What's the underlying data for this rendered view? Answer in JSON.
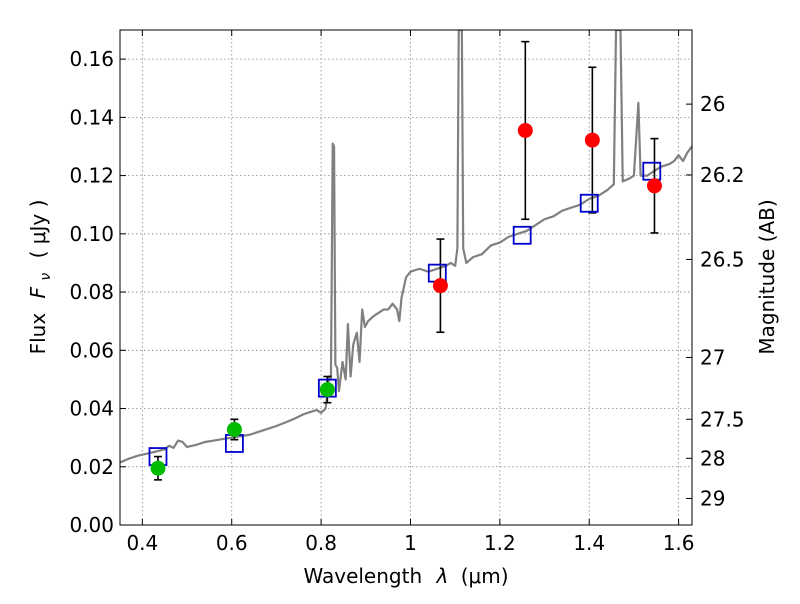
{
  "colors": {
    "spectrum": "#808080",
    "model_box": "#0000cc",
    "optical": "#00bb00",
    "nir": "#ff0000",
    "errorbar": "#000000",
    "grid": "#888888"
  },
  "chart_data": {
    "type": "scatter",
    "xlabel_prefix": "Wavelength",
    "xlabel_var": "λ",
    "xlabel_unit": "(μm)",
    "ylabel_prefix": "Flux",
    "ylabel_var": "F",
    "ylabel_sub": "ν",
    "ylabel_unit": "( μJy )",
    "y2label": "Magnitude (AB)",
    "xlim": [
      0.35,
      1.63
    ],
    "ylim": [
      0.0,
      0.17
    ],
    "grid": true,
    "xticks": [
      0.4,
      0.6,
      0.8,
      1.0,
      1.2,
      1.4,
      1.6
    ],
    "xtick_labels": [
      "0.4",
      "0.6",
      "0.8",
      "1",
      "1.2",
      "1.4",
      "1.6"
    ],
    "yticks": [
      0.0,
      0.02,
      0.04,
      0.06,
      0.08,
      0.1,
      0.12,
      0.14,
      0.16
    ],
    "ytick_labels": [
      "0.00",
      "0.02",
      "0.04",
      "0.06",
      "0.08",
      "0.10",
      "0.12",
      "0.14",
      "0.16"
    ],
    "y2ticks": [
      {
        "mag": 26,
        "label": "26"
      },
      {
        "mag": 26.2,
        "label": "26.2"
      },
      {
        "mag": 26.5,
        "label": "26.5"
      },
      {
        "mag": 27,
        "label": "27"
      },
      {
        "mag": 27.5,
        "label": "27.5"
      },
      {
        "mag": 28,
        "label": "28"
      },
      {
        "mag": 29,
        "label": "29"
      }
    ],
    "model_photometry": [
      {
        "x": 0.435,
        "y": 0.0235
      },
      {
        "x": 0.606,
        "y": 0.028
      },
      {
        "x": 0.814,
        "y": 0.047
      },
      {
        "x": 1.06,
        "y": 0.0865
      },
      {
        "x": 1.25,
        "y": 0.0995
      },
      {
        "x": 1.4,
        "y": 0.1105
      },
      {
        "x": 1.54,
        "y": 0.1215
      }
    ],
    "optical_points": [
      {
        "x": 0.435,
        "y": 0.0195,
        "err": 0.004
      },
      {
        "x": 0.606,
        "y": 0.0328,
        "err": 0.0035
      },
      {
        "x": 0.814,
        "y": 0.0465,
        "err": 0.0045
      }
    ],
    "nir_points": [
      {
        "x": 1.067,
        "y": 0.0822,
        "err": 0.016
      },
      {
        "x": 1.257,
        "y": 0.1355,
        "err": 0.0305
      },
      {
        "x": 1.407,
        "y": 0.1322,
        "err": 0.025
      },
      {
        "x": 1.546,
        "y": 0.1165,
        "err": 0.0162
      }
    ],
    "spectrum": [
      [
        0.35,
        0.0215
      ],
      [
        0.37,
        0.0228
      ],
      [
        0.39,
        0.0238
      ],
      [
        0.41,
        0.0245
      ],
      [
        0.43,
        0.0252
      ],
      [
        0.45,
        0.026
      ],
      [
        0.46,
        0.0272
      ],
      [
        0.47,
        0.0265
      ],
      [
        0.48,
        0.029
      ],
      [
        0.49,
        0.0285
      ],
      [
        0.5,
        0.0268
      ],
      [
        0.52,
        0.0275
      ],
      [
        0.54,
        0.0285
      ],
      [
        0.56,
        0.029
      ],
      [
        0.58,
        0.0295
      ],
      [
        0.6,
        0.03
      ],
      [
        0.62,
        0.0305
      ],
      [
        0.64,
        0.031
      ],
      [
        0.66,
        0.032
      ],
      [
        0.68,
        0.033
      ],
      [
        0.7,
        0.034
      ],
      [
        0.72,
        0.0352
      ],
      [
        0.74,
        0.0365
      ],
      [
        0.76,
        0.038
      ],
      [
        0.78,
        0.039
      ],
      [
        0.79,
        0.0395
      ],
      [
        0.8,
        0.0385
      ],
      [
        0.81,
        0.04
      ],
      [
        0.815,
        0.046
      ],
      [
        0.818,
        0.051
      ],
      [
        0.822,
        0.05
      ],
      [
        0.826,
        0.131
      ],
      [
        0.829,
        0.13
      ],
      [
        0.832,
        0.055
      ],
      [
        0.836,
        0.054
      ],
      [
        0.84,
        0.046
      ],
      [
        0.848,
        0.056
      ],
      [
        0.855,
        0.05
      ],
      [
        0.86,
        0.069
      ],
      [
        0.866,
        0.051
      ],
      [
        0.872,
        0.062
      ],
      [
        0.88,
        0.066
      ],
      [
        0.886,
        0.056
      ],
      [
        0.892,
        0.074
      ],
      [
        0.898,
        0.068
      ],
      [
        0.905,
        0.07
      ],
      [
        0.912,
        0.071
      ],
      [
        0.92,
        0.072
      ],
      [
        0.93,
        0.073
      ],
      [
        0.94,
        0.074
      ],
      [
        0.95,
        0.074
      ],
      [
        0.96,
        0.076
      ],
      [
        0.97,
        0.074
      ],
      [
        0.975,
        0.07
      ],
      [
        0.98,
        0.078
      ],
      [
        0.99,
        0.085
      ],
      [
        1.0,
        0.087
      ],
      [
        1.02,
        0.088
      ],
      [
        1.04,
        0.087
      ],
      [
        1.06,
        0.088
      ],
      [
        1.08,
        0.089
      ],
      [
        1.09,
        0.09
      ],
      [
        1.1,
        0.089
      ],
      [
        1.105,
        0.095
      ],
      [
        1.108,
        0.17
      ],
      [
        1.115,
        0.17
      ],
      [
        1.118,
        0.095
      ],
      [
        1.125,
        0.09
      ],
      [
        1.14,
        0.092
      ],
      [
        1.16,
        0.093
      ],
      [
        1.18,
        0.096
      ],
      [
        1.2,
        0.097
      ],
      [
        1.22,
        0.099
      ],
      [
        1.24,
        0.1
      ],
      [
        1.26,
        0.101
      ],
      [
        1.28,
        0.103
      ],
      [
        1.3,
        0.105
      ],
      [
        1.32,
        0.106
      ],
      [
        1.34,
        0.108
      ],
      [
        1.36,
        0.109
      ],
      [
        1.38,
        0.11
      ],
      [
        1.4,
        0.112
      ],
      [
        1.42,
        0.113
      ],
      [
        1.44,
        0.115
      ],
      [
        1.455,
        0.117
      ],
      [
        1.46,
        0.17
      ],
      [
        1.47,
        0.17
      ],
      [
        1.475,
        0.118
      ],
      [
        1.49,
        0.119
      ],
      [
        1.5,
        0.12
      ],
      [
        1.51,
        0.145
      ],
      [
        1.515,
        0.12
      ],
      [
        1.53,
        0.12
      ],
      [
        1.545,
        0.1215
      ],
      [
        1.56,
        0.123
      ],
      [
        1.58,
        0.124
      ],
      [
        1.59,
        0.125
      ],
      [
        1.6,
        0.127
      ],
      [
        1.61,
        0.125
      ],
      [
        1.62,
        0.128
      ],
      [
        1.63,
        0.13
      ]
    ]
  }
}
